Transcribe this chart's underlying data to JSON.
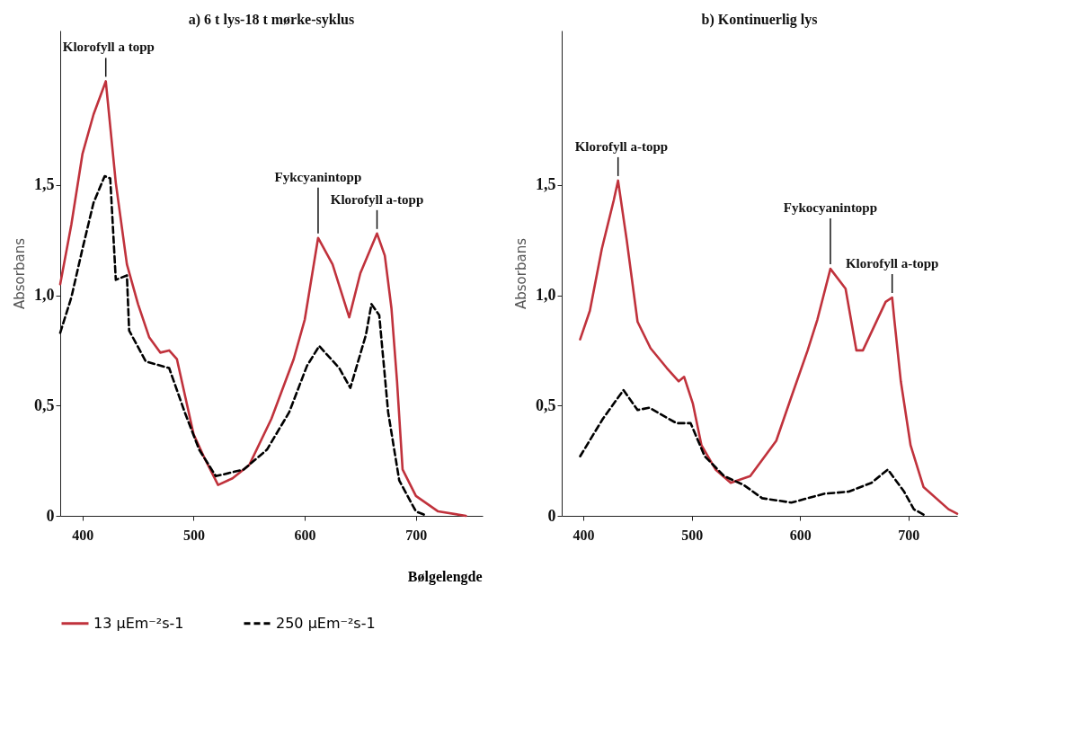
{
  "chart_data": [
    {
      "type": "line",
      "title": "a)  6 t lys-18 t mørke-syklus",
      "xlabel": "Bølgelengde",
      "ylabel": "Absorbans",
      "xlim": [
        380,
        760
      ],
      "xticks": [
        400,
        500,
        600,
        700
      ],
      "ylim": [
        0,
        2.2
      ],
      "yticks": [
        {
          "value": 0,
          "label": "0"
        },
        {
          "value": 0.5,
          "label": "0,5"
        },
        {
          "value": 1.0,
          "label": "1,0"
        },
        {
          "value": 1.5,
          "label": "1,5"
        }
      ],
      "legend": "bottom",
      "series": [
        {
          "name": "13 μEm⁻²s-1",
          "color": "#c0323c",
          "line_style": "solid",
          "x": [
            380,
            390,
            400,
            410,
            421,
            430,
            440,
            450,
            460,
            470,
            478,
            485,
            500,
            510,
            522,
            535,
            550,
            570,
            590,
            600,
            612,
            625,
            640,
            650,
            665,
            672,
            678,
            683,
            688,
            700,
            720,
            745
          ],
          "values": [
            1.05,
            1.32,
            1.64,
            1.82,
            1.97,
            1.51,
            1.14,
            0.96,
            0.81,
            0.74,
            0.75,
            0.71,
            0.37,
            0.26,
            0.14,
            0.17,
            0.23,
            0.44,
            0.71,
            0.89,
            1.26,
            1.14,
            0.9,
            1.1,
            1.28,
            1.18,
            0.94,
            0.61,
            0.21,
            0.09,
            0.02,
            0
          ]
        },
        {
          "name": "250 μEm⁻²s-1",
          "color": "#000000",
          "line_style": "dashed",
          "x": [
            380,
            390,
            400,
            410,
            420,
            425,
            430,
            440,
            442,
            457,
            478,
            492,
            505,
            520,
            545,
            566,
            586,
            602,
            613,
            631,
            641,
            655,
            660,
            667,
            675,
            685,
            700,
            710
          ],
          "values": [
            0.83,
            0.99,
            1.21,
            1.42,
            1.54,
            1.53,
            1.07,
            1.09,
            0.84,
            0.7,
            0.67,
            0.47,
            0.3,
            0.18,
            0.21,
            0.3,
            0.47,
            0.68,
            0.77,
            0.67,
            0.58,
            0.82,
            0.96,
            0.91,
            0.47,
            0.16,
            0.02,
            0
          ]
        }
      ],
      "annotations": [
        {
          "text": "Klorofyll a topp",
          "x": 421,
          "y": 1.97
        },
        {
          "text": "Fykcyanintopp",
          "x": 612,
          "y": 1.26
        },
        {
          "text": "Klorofyll a-topp",
          "x": 665,
          "y": 1.28
        }
      ]
    },
    {
      "type": "line",
      "title": "b) Kontinuerlig lys",
      "ylabel": "Absorbans",
      "xlim": [
        380,
        745
      ],
      "xticks": [
        400,
        500,
        600,
        700
      ],
      "ylim": [
        0,
        2.2
      ],
      "yticks": [
        {
          "value": 0,
          "label": "0"
        },
        {
          "value": 0.5,
          "label": "0,5"
        },
        {
          "value": 1.0,
          "label": "1,0"
        },
        {
          "value": 1.5,
          "label": "1,5"
        }
      ],
      "series": [
        {
          "color": "#c0323c",
          "line_style": "solid",
          "x": [
            397,
            406,
            417,
            428,
            432,
            440,
            450,
            462,
            477,
            488,
            493,
            501,
            509,
            522,
            536,
            554,
            578,
            592,
            607,
            616,
            628,
            642,
            652,
            658,
            679,
            685,
            687,
            693,
            702,
            714,
            737,
            745
          ],
          "values": [
            0.8,
            0.93,
            1.21,
            1.43,
            1.52,
            1.25,
            0.88,
            0.76,
            0.67,
            0.61,
            0.63,
            0.51,
            0.32,
            0.21,
            0.15,
            0.18,
            0.34,
            0.54,
            0.75,
            0.89,
            1.12,
            1.03,
            0.75,
            0.75,
            0.97,
            0.99,
            0.89,
            0.61,
            0.32,
            0.13,
            0.03,
            0.01
          ]
        },
        {
          "color": "#000000",
          "line_style": "dashed",
          "x": [
            397,
            418,
            437,
            450,
            461,
            486,
            499,
            512,
            530,
            548,
            565,
            592,
            622,
            645,
            666,
            681,
            696,
            705,
            716
          ],
          "values": [
            0.27,
            0.44,
            0.57,
            0.48,
            0.49,
            0.42,
            0.42,
            0.27,
            0.18,
            0.14,
            0.08,
            0.06,
            0.1,
            0.11,
            0.15,
            0.21,
            0.11,
            0.03,
            0
          ]
        }
      ],
      "annotations": [
        {
          "text": "Klorofyll a-topp",
          "x": 432,
          "y": 1.52
        },
        {
          "text": "Fykocyanintopp",
          "x": 628,
          "y": 1.12
        },
        {
          "text": "Klorofyll a-topp",
          "x": 685,
          "y": 0.99
        }
      ]
    }
  ]
}
